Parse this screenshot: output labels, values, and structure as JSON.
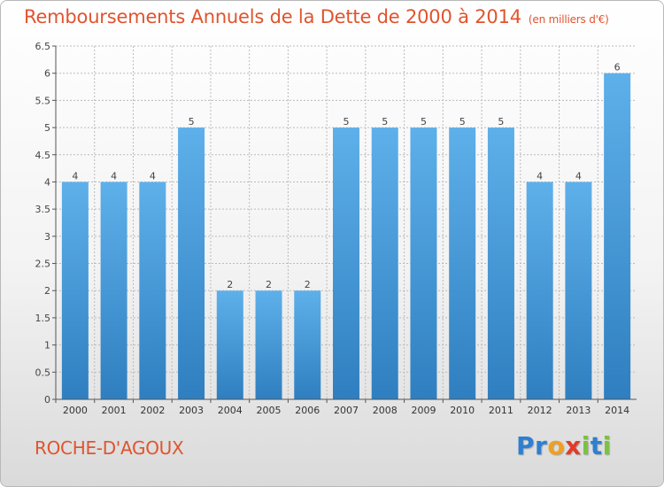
{
  "title": "Remboursements Annuels de la Dette de 2000 à 2014",
  "unit_note": "(en milliers d'€)",
  "commune": "ROCHE-D'AGOUX",
  "logo": {
    "letters": [
      "P",
      "r",
      "o",
      "x",
      "i",
      "t",
      "i"
    ],
    "colors": [
      "#2e7fd0",
      "#2e7fd0",
      "#f0a020",
      "#e23b2a",
      "#7cc242",
      "#2e7fd0",
      "#7cc242"
    ]
  },
  "colors": {
    "title": "#e0542f",
    "bar_light": "#5eb0ea",
    "bar_dark": "#2f7fc0",
    "axis": "#555555",
    "grid": "#bbbbbb"
  },
  "chart_data": {
    "type": "bar",
    "categories": [
      "2000",
      "2001",
      "2002",
      "2003",
      "2004",
      "2005",
      "2006",
      "2007",
      "2008",
      "2009",
      "2010",
      "2011",
      "2012",
      "2013",
      "2014"
    ],
    "values": [
      4,
      4,
      4,
      5,
      2,
      2,
      2,
      5,
      5,
      5,
      5,
      5,
      4,
      4,
      6
    ],
    "data_labels": [
      "4",
      "4",
      "4",
      "5",
      "2",
      "2",
      "2",
      "5",
      "5",
      "5",
      "5",
      "5",
      "4",
      "4",
      "6"
    ],
    "title": "Remboursements Annuels de la Dette de 2000 à 2014",
    "xlabel": "",
    "ylabel": "",
    "ylim": [
      0,
      6.5
    ],
    "yticks": [
      0,
      0.5,
      1,
      1.5,
      2,
      2.5,
      3,
      3.5,
      4,
      4.5,
      5,
      5.5,
      6,
      6.5
    ],
    "ytick_labels": [
      "0",
      "0.5",
      "1",
      "1.5",
      "2",
      "2.5",
      "3",
      "3.5",
      "4",
      "4.5",
      "5",
      "5.5",
      "6",
      "6.5"
    ],
    "grid": true
  }
}
